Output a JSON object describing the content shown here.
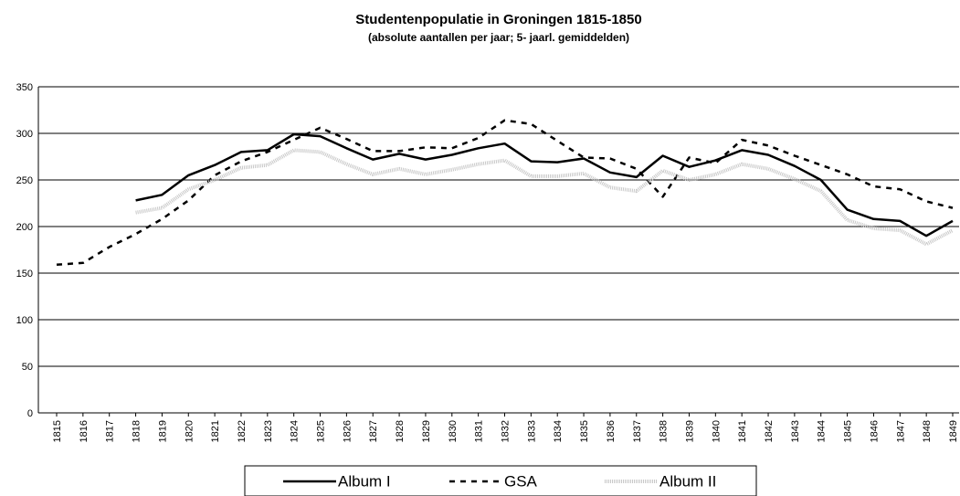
{
  "chart_data": {
    "type": "line",
    "title": "Studentenpopulatie in Groningen 1815-1850",
    "subtitle": "(absolute aantallen per jaar; 5- jaarl. gemiddelden)",
    "categories": [
      "1815",
      "1816",
      "1817",
      "1818",
      "1819",
      "1820",
      "1821",
      "1822",
      "1823",
      "1824",
      "1825",
      "1826",
      "1827",
      "1828",
      "1829",
      "1830",
      "1831",
      "1832",
      "1833",
      "1834",
      "1835",
      "1836",
      "1837",
      "1838",
      "1839",
      "1840",
      "1841",
      "1842",
      "1843",
      "1844",
      "1845",
      "1846",
      "1847",
      "1848",
      "1849"
    ],
    "series": [
      {
        "name": "Album I",
        "color": "#000000",
        "dash": "solid",
        "values": [
          null,
          null,
          null,
          228,
          234,
          255,
          266,
          280,
          282,
          299,
          297,
          284,
          272,
          278,
          272,
          277,
          284,
          289,
          270,
          269,
          273,
          258,
          253,
          276,
          264,
          271,
          282,
          277,
          265,
          250,
          218,
          208,
          206,
          190,
          206
        ]
      },
      {
        "name": "GSA",
        "color": "#000000",
        "dash": "dashed",
        "values": [
          159,
          161,
          178,
          192,
          208,
          228,
          255,
          270,
          280,
          293,
          306,
          294,
          281,
          281,
          285,
          284,
          295,
          314,
          310,
          292,
          274,
          273,
          262,
          232,
          274,
          268,
          293,
          287,
          276,
          266,
          256,
          243,
          240,
          227,
          220
        ]
      },
      {
        "name": "Album II",
        "color": "#c8c8c8",
        "dash": "dotted",
        "values": [
          null,
          null,
          null,
          215,
          220,
          240,
          250,
          263,
          266,
          282,
          280,
          267,
          256,
          262,
          256,
          261,
          267,
          271,
          254,
          254,
          257,
          242,
          238,
          260,
          250,
          256,
          267,
          262,
          251,
          238,
          207,
          198,
          196,
          181,
          196
        ]
      }
    ],
    "ylim": [
      0,
      350
    ],
    "yticks": [
      0,
      50,
      100,
      150,
      200,
      250,
      300,
      350
    ],
    "grid": true
  }
}
